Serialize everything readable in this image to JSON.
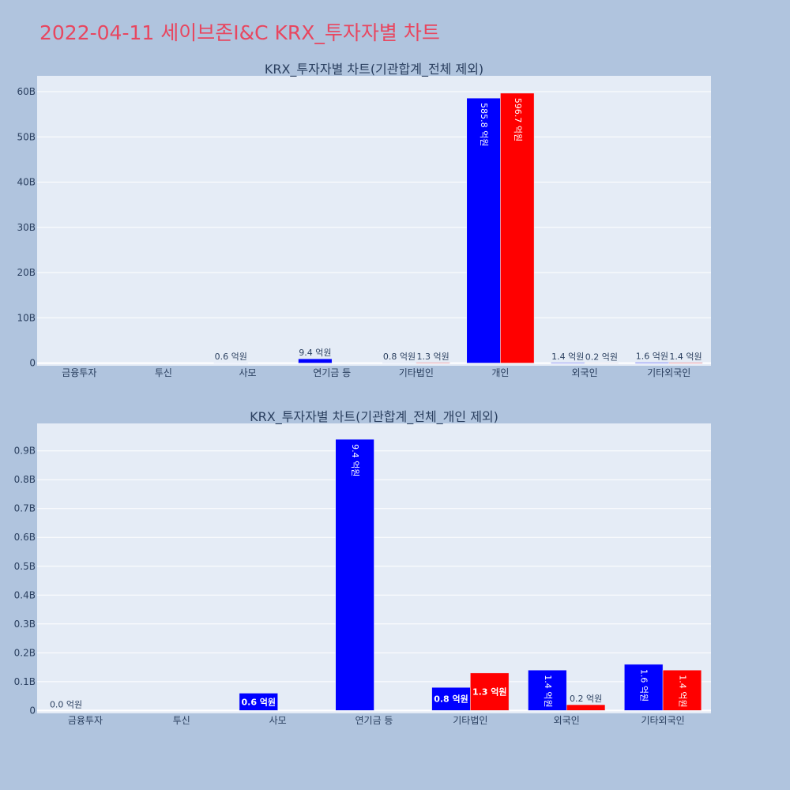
{
  "page_title": "2022-04-11 세이브존I&C KRX_투자자별 차트",
  "colors": {
    "background": "#b0c4de",
    "plot_bg": "#e5ecf6",
    "title": "#e8465f",
    "series1": "#0000ff",
    "series2": "#ff0000",
    "grid": "#ffffff",
    "text": "#2a3f5f"
  },
  "chart_data": [
    {
      "type": "bar",
      "title": "KRX_투자자별 차트(기관합계_전체 제외)",
      "categories": [
        "금융투자",
        "투신",
        "사모",
        "연기금 등",
        "기타법인",
        "개인",
        "외국인",
        "기타외국인"
      ],
      "ylim": [
        -0.6,
        63.5
      ],
      "ytick_values": [
        0,
        10,
        20,
        30,
        40,
        50,
        60
      ],
      "ytick_labels": [
        "0",
        "10B",
        "20B",
        "30B",
        "40B",
        "50B",
        "60B"
      ],
      "grid": true,
      "series": [
        {
          "values": [
            0.0,
            0.0,
            0.06,
            0.94,
            0.08,
            58.58,
            0.14,
            0.16
          ],
          "labels": [
            "",
            "",
            "0.6 억원",
            "9.4 억원",
            "0.8 억원",
            "585.8 억원",
            "1.4 억원",
            "1.6 억원"
          ]
        },
        {
          "values": [
            0.0,
            0.0,
            0.0,
            0.0,
            0.13,
            59.67,
            0.02,
            0.14
          ],
          "labels": [
            "",
            "",
            "",
            "",
            "1.3 억원",
            "596.7 억원",
            "0.2 억원",
            "1.4 억원"
          ]
        }
      ]
    },
    {
      "type": "bar",
      "title": "KRX_투자자별 차트(기관합계_전체_개인 제외)",
      "categories": [
        "금융투자",
        "투신",
        "사모",
        "연기금 등",
        "기타법인",
        "외국인",
        "기타외국인"
      ],
      "ylim": [
        -0.01,
        0.995
      ],
      "ytick_values": [
        0,
        0.1,
        0.2,
        0.3,
        0.4,
        0.5,
        0.6,
        0.7,
        0.8,
        0.9
      ],
      "ytick_labels": [
        "0",
        "0.1B",
        "0.2B",
        "0.3B",
        "0.4B",
        "0.5B",
        "0.6B",
        "0.7B",
        "0.8B",
        "0.9B"
      ],
      "grid": true,
      "series": [
        {
          "values": [
            0.0,
            0.0,
            0.06,
            0.94,
            0.08,
            0.14,
            0.16
          ],
          "labels": [
            "0.0 억원",
            "",
            "0.6 억원",
            "9.4 억원",
            "0.8 억원",
            "1.4 억원",
            "1.6 억원"
          ]
        },
        {
          "values": [
            0.0,
            0.0,
            0.0,
            0.0,
            0.13,
            0.02,
            0.14
          ],
          "labels": [
            "",
            "",
            "",
            "",
            "1.3 억원",
            "0.2 억원",
            "1.4 억원"
          ]
        }
      ]
    }
  ]
}
